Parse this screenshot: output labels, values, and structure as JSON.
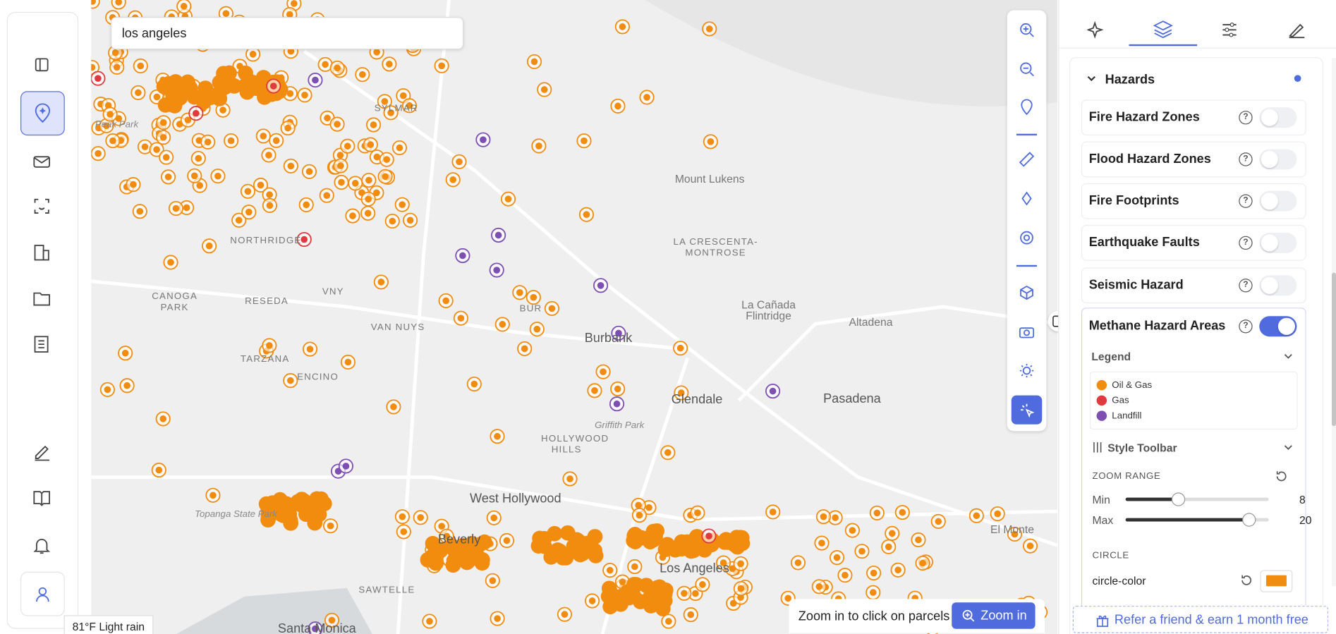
{
  "search": {
    "query": "los angeles"
  },
  "map": {
    "labels": [
      "Peak Park",
      "SYLMAR",
      "NORTHRIDGE",
      "CANOGA PARK",
      "RESEDA",
      "VNY",
      "VAN NUYS",
      "TARZANA",
      "ENCINO",
      "BUR",
      "Burbank",
      "Mount Lukens",
      "LA CRESCENTA-MONTROSE",
      "La Cañada Flintridge",
      "Altadena",
      "Glendale",
      "Pasadena",
      "Griffith Park",
      "HOLLYWOOD HILLS",
      "West Hollywood",
      "Topanga State Park",
      "Beverly",
      "Los Angeles",
      "SAWTELLE",
      "El Monte",
      "Santa Monica"
    ]
  },
  "zoom_hint": {
    "text": "Zoom in to click on parcels",
    "button": "Zoom in"
  },
  "weather": "81°F Light rain",
  "panel": {
    "section": "Hazards",
    "layers": [
      {
        "name": "Fire Hazard Zones",
        "enabled": false
      },
      {
        "name": "Flood Hazard Zones",
        "enabled": false
      },
      {
        "name": "Fire Footprints",
        "enabled": false
      },
      {
        "name": "Earthquake Faults",
        "enabled": false
      },
      {
        "name": "Seismic Hazard",
        "enabled": false
      },
      {
        "name": "Methane Hazard Areas",
        "enabled": true
      }
    ],
    "legend": {
      "title": "Legend",
      "items": [
        {
          "label": "Oil & Gas",
          "color": "#f28c0f"
        },
        {
          "label": "Gas",
          "color": "#e03a3e"
        },
        {
          "label": "Landfill",
          "color": "#7d4fb3"
        }
      ]
    },
    "style_toolbar": {
      "title": "Style Toolbar",
      "zoom_range": {
        "title": "ZOOM RANGE",
        "min_label": "Min",
        "min": 8,
        "max_label": "Max",
        "max": 20
      },
      "circle": {
        "title": "CIRCLE",
        "property": "circle-color",
        "color": "#f28c0f"
      }
    }
  },
  "referral": "Refer a friend & earn 1 month free"
}
